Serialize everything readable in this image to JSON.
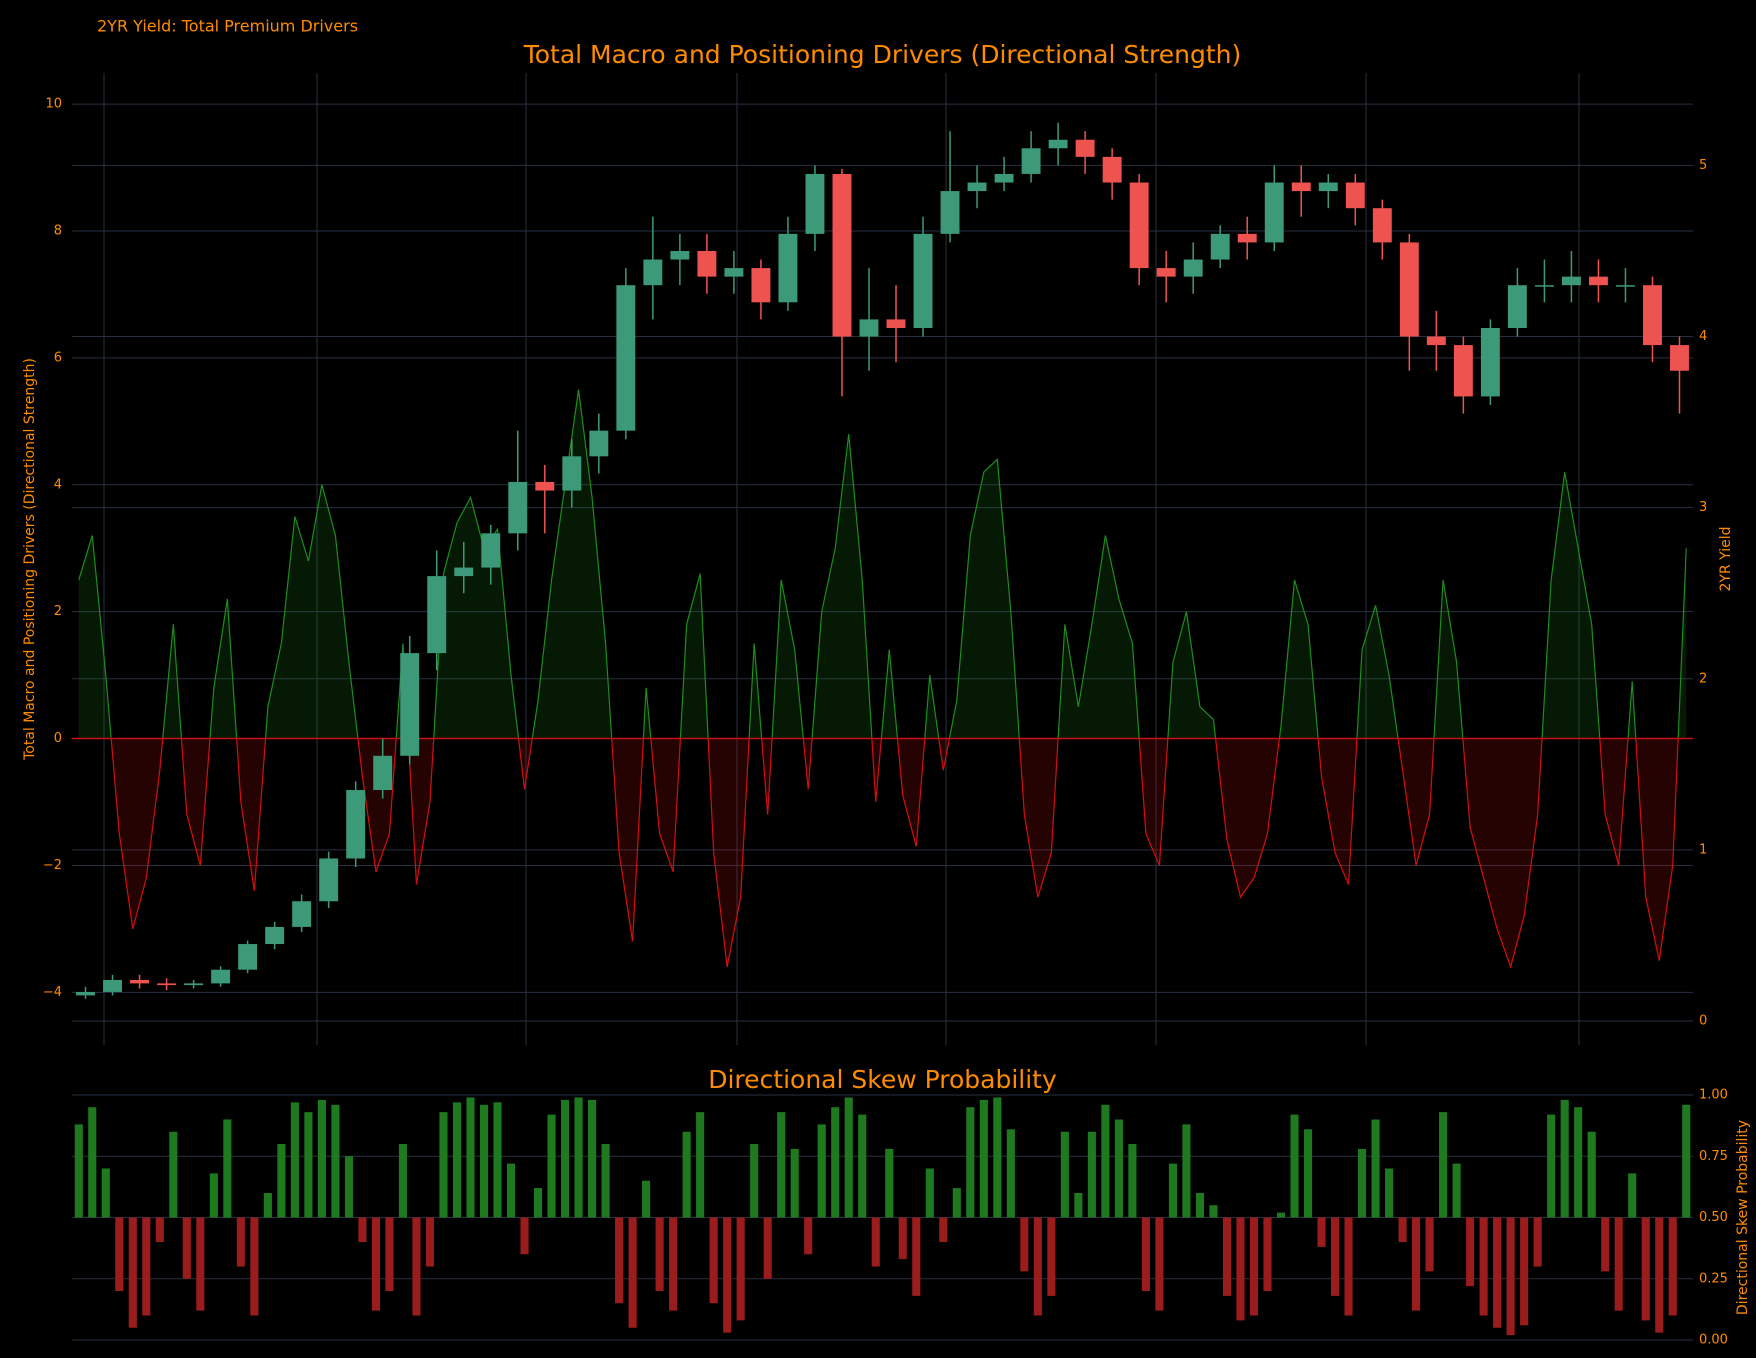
{
  "title": "2YR Yield: Total Premium Drivers",
  "chart_data": [
    {
      "type": "combo",
      "title": "Total Macro and Positioning Drivers (Directional Strength)",
      "ylabel": "Total Macro and Positioning Drivers (Directional Strength)",
      "y2label": "2YR Yield",
      "ylim": [
        -4.83,
        10.49
      ],
      "yticks": [
        {
          "value": -4,
          "label": "−4"
        },
        {
          "value": -2,
          "label": "−2"
        },
        0,
        2,
        4,
        6,
        8,
        10
      ],
      "y2lim": [
        -0.14,
        5.54
      ],
      "y2ticks": [
        0,
        1,
        2,
        3,
        4,
        5
      ],
      "grid": true,
      "zero_line_color": "#cc1111",
      "series": [
        {
          "type": "area",
          "positive_color": "#1e8c1e",
          "negative_color": "#d01010",
          "values": [
            2.5,
            3.2,
            1.0,
            -1.5,
            -3.0,
            -2.2,
            -0.5,
            1.8,
            -1.2,
            -2.0,
            0.8,
            2.2,
            -1.0,
            -2.4,
            0.5,
            1.5,
            3.5,
            2.8,
            4.0,
            3.2,
            1.2,
            -0.6,
            -2.1,
            -1.5,
            1.5,
            -2.3,
            -1.0,
            2.6,
            3.4,
            3.8,
            3.0,
            3.3,
            1.0,
            -0.8,
            0.6,
            2.5,
            4.0,
            5.5,
            3.8,
            1.5,
            -1.8,
            -3.2,
            0.8,
            -1.5,
            -2.1,
            1.8,
            2.6,
            -1.8,
            -3.6,
            -2.5,
            1.5,
            -1.2,
            2.5,
            1.4,
            -0.8,
            2.0,
            3.0,
            4.8,
            2.5,
            -1.0,
            1.4,
            -0.9,
            -1.7,
            1.0,
            -0.5,
            0.6,
            3.2,
            4.2,
            4.4,
            2.0,
            -1.2,
            -2.5,
            -1.8,
            1.8,
            0.5,
            1.8,
            3.2,
            2.2,
            1.5,
            -1.5,
            -2.0,
            1.2,
            2.0,
            0.5,
            0.3,
            -1.6,
            -2.5,
            -2.2,
            -1.5,
            0.2,
            2.5,
            1.8,
            -0.6,
            -1.8,
            -2.3,
            1.4,
            2.1,
            1.0,
            -0.5,
            -2.0,
            -1.2,
            2.5,
            1.2,
            -1.4,
            -2.2,
            -3.0,
            -3.6,
            -2.8,
            -1.2,
            2.5,
            4.2,
            3.0,
            1.8,
            -1.2,
            -2.0,
            0.9,
            -2.5,
            -3.5,
            -2.0,
            3.0
          ]
        },
        {
          "type": "candlestick",
          "axis": "y2",
          "increasing_color": "#3d9a78",
          "decreasing_color": "#ef5350",
          "open": [
            0.15,
            0.17,
            0.24,
            0.22,
            0.21,
            0.22,
            0.3,
            0.45,
            0.55,
            0.7,
            0.95,
            1.35,
            1.55,
            2.15,
            2.6,
            2.65,
            2.85,
            3.15,
            3.1,
            3.3,
            3.45,
            4.3,
            4.45,
            4.5,
            4.35,
            4.4,
            4.2,
            4.6,
            4.95,
            4.0,
            4.1,
            4.05,
            4.6,
            4.85,
            4.9,
            4.95,
            5.1,
            5.15,
            5.05,
            4.9,
            4.4,
            4.35,
            4.45,
            4.6,
            4.55,
            4.9,
            4.85,
            4.9,
            4.75,
            4.55,
            4.0,
            3.95,
            3.65,
            4.05,
            4.3,
            4.3,
            4.35,
            4.3,
            4.3,
            3.95
          ],
          "high": [
            0.2,
            0.27,
            0.27,
            0.25,
            0.24,
            0.32,
            0.47,
            0.58,
            0.74,
            0.99,
            1.4,
            1.65,
            2.25,
            2.75,
            2.8,
            2.9,
            3.45,
            3.25,
            3.4,
            3.55,
            4.4,
            4.7,
            4.6,
            4.6,
            4.5,
            4.45,
            4.7,
            5.0,
            4.98,
            4.4,
            4.3,
            4.7,
            5.2,
            5.0,
            5.05,
            5.2,
            5.25,
            5.2,
            5.1,
            4.95,
            4.5,
            4.55,
            4.65,
            4.7,
            5.0,
            5.0,
            4.95,
            4.95,
            4.8,
            4.6,
            4.15,
            4.0,
            4.1,
            4.4,
            4.45,
            4.5,
            4.45,
            4.4,
            4.35,
            4.0
          ],
          "low": [
            0.13,
            0.15,
            0.19,
            0.18,
            0.19,
            0.2,
            0.28,
            0.42,
            0.52,
            0.66,
            0.9,
            1.3,
            1.5,
            2.05,
            2.5,
            2.55,
            2.75,
            2.85,
            3.0,
            3.2,
            3.4,
            4.1,
            4.3,
            4.25,
            4.25,
            4.1,
            4.15,
            4.5,
            3.65,
            3.8,
            3.85,
            4.0,
            4.55,
            4.75,
            4.85,
            4.9,
            5.0,
            4.95,
            4.8,
            4.3,
            4.2,
            4.25,
            4.4,
            4.45,
            4.5,
            4.7,
            4.75,
            4.65,
            4.45,
            3.8,
            3.8,
            3.55,
            3.6,
            4.0,
            4.2,
            4.2,
            4.2,
            4.2,
            3.85,
            3.55
          ],
          "close": [
            0.17,
            0.24,
            0.22,
            0.21,
            0.22,
            0.3,
            0.45,
            0.55,
            0.7,
            0.95,
            1.35,
            1.55,
            2.15,
            2.6,
            2.65,
            2.85,
            3.15,
            3.1,
            3.3,
            3.45,
            4.3,
            4.45,
            4.5,
            4.35,
            4.4,
            4.2,
            4.6,
            4.95,
            4.0,
            4.1,
            4.05,
            4.6,
            4.85,
            4.9,
            4.95,
            5.1,
            5.15,
            5.05,
            4.9,
            4.4,
            4.35,
            4.45,
            4.6,
            4.55,
            4.9,
            4.85,
            4.9,
            4.75,
            4.55,
            4.0,
            3.95,
            3.65,
            4.05,
            4.3,
            4.3,
            4.35,
            4.3,
            4.3,
            3.95,
            3.8
          ]
        }
      ]
    },
    {
      "type": "bar",
      "title": "Directional Skew Probability",
      "y2label": "Directional Skew Probability",
      "yaxis_side": "right",
      "ylim": [
        0,
        1
      ],
      "yticks": [
        {
          "value": 0,
          "label": "0.00"
        },
        {
          "value": 0.25,
          "label": "0.25"
        },
        {
          "value": 0.5,
          "label": "0.50"
        },
        {
          "value": 0.75,
          "label": "0.75"
        },
        {
          "value": 1,
          "label": "1.00"
        }
      ],
      "grid": true,
      "base": 0.5,
      "positive_color": "#1f7a1f",
      "negative_color": "#9a1c1c",
      "values": [
        0.88,
        0.95,
        0.7,
        0.2,
        0.05,
        0.1,
        0.4,
        0.85,
        0.25,
        0.12,
        0.68,
        0.9,
        0.3,
        0.1,
        0.6,
        0.8,
        0.97,
        0.93,
        0.98,
        0.96,
        0.75,
        0.4,
        0.12,
        0.2,
        0.8,
        0.1,
        0.3,
        0.93,
        0.97,
        0.99,
        0.96,
        0.97,
        0.72,
        0.35,
        0.62,
        0.92,
        0.98,
        0.99,
        0.98,
        0.8,
        0.15,
        0.05,
        0.65,
        0.2,
        0.12,
        0.85,
        0.93,
        0.15,
        0.03,
        0.08,
        0.8,
        0.25,
        0.93,
        0.78,
        0.35,
        0.88,
        0.95,
        0.99,
        0.92,
        0.3,
        0.78,
        0.33,
        0.18,
        0.7,
        0.4,
        0.62,
        0.95,
        0.98,
        0.99,
        0.86,
        0.28,
        0.1,
        0.18,
        0.85,
        0.6,
        0.85,
        0.96,
        0.9,
        0.8,
        0.2,
        0.12,
        0.72,
        0.88,
        0.6,
        0.55,
        0.18,
        0.08,
        0.1,
        0.2,
        0.52,
        0.92,
        0.86,
        0.38,
        0.18,
        0.1,
        0.78,
        0.9,
        0.7,
        0.4,
        0.12,
        0.28,
        0.93,
        0.72,
        0.22,
        0.1,
        0.05,
        0.02,
        0.06,
        0.3,
        0.92,
        0.98,
        0.95,
        0.85,
        0.28,
        0.12,
        0.68,
        0.08,
        0.03,
        0.1,
        0.96
      ]
    }
  ]
}
